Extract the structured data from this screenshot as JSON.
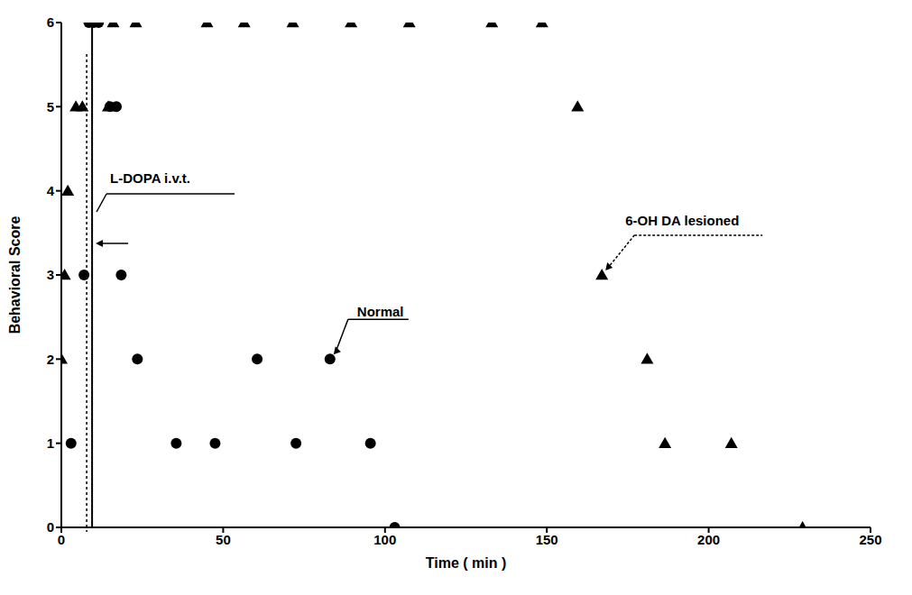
{
  "chart_data": {
    "type": "scatter",
    "x_label": "Time ( min )",
    "y_label": "Behavioral Score",
    "xlim": [
      0,
      250
    ],
    "ylim": [
      0,
      6
    ],
    "xticks": [
      0,
      50,
      100,
      150,
      200,
      250
    ],
    "yticks": [
      0,
      1,
      2,
      3,
      4,
      5,
      6
    ],
    "grid": false,
    "series": [
      {
        "name": "Normal",
        "color": "#000000",
        "marker": "circle",
        "x": [
          3,
          7,
          8.5,
          10,
          11.5,
          15,
          17,
          18.5,
          23.5,
          35.5,
          47.5,
          60.5,
          72.5,
          83,
          95.5,
          103
        ],
        "values": [
          1,
          3,
          6,
          6,
          6,
          5,
          5,
          3,
          2,
          1,
          1,
          2,
          1,
          2,
          1,
          0
        ]
      },
      {
        "name": "6-OH DA lesioned",
        "color": "#000000",
        "marker": "triangle",
        "x": [
          0,
          1,
          2,
          4.5,
          6.5,
          14.5,
          16,
          23,
          45,
          56.5,
          71.5,
          89.5,
          107.5,
          133,
          148.5,
          159.5,
          167,
          181,
          186.5,
          207,
          229
        ],
        "values": [
          2,
          3,
          4,
          5,
          5,
          5,
          6,
          6,
          6,
          6,
          6,
          6,
          6,
          6,
          6,
          5,
          3,
          2,
          1,
          1,
          0
        ]
      }
    ],
    "annotations": [
      {
        "text": "L-DOPA i.v.t.",
        "x": 9.5
      },
      {
        "text": "Normal",
        "x": 83,
        "y": 2
      },
      {
        "text": "6-OH DA lesioned",
        "x": 167,
        "y": 3
      }
    ]
  }
}
